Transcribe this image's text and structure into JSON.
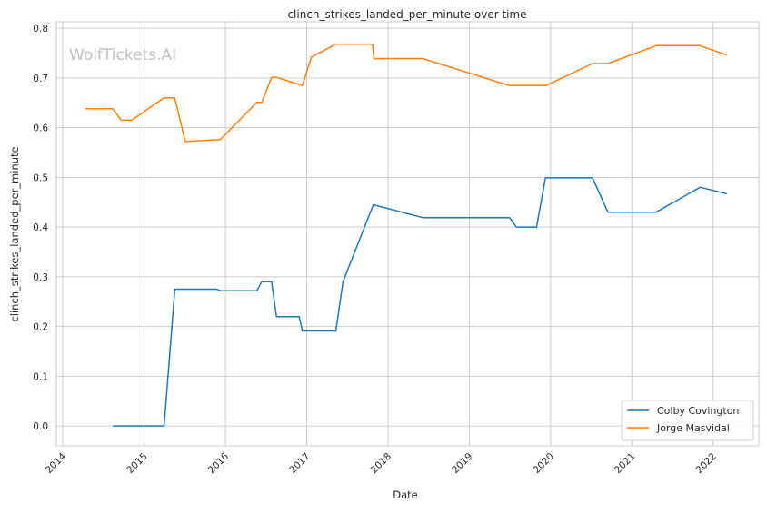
{
  "chart_data": {
    "type": "line",
    "title": "clinch_strikes_landed_per_minute over time",
    "xlabel": "Date",
    "ylabel": "clinch_strikes_landed_per_minute",
    "watermark": "WolfTickets.AI",
    "xlim": [
      "2013-12-03",
      "2022-07-25"
    ],
    "ylim": [
      -0.04,
      0.813
    ],
    "x_ticks": [
      "2014",
      "2015",
      "2016",
      "2017",
      "2018",
      "2019",
      "2020",
      "2021",
      "2022"
    ],
    "y_ticks": [
      "0.0",
      "0.1",
      "0.2",
      "0.3",
      "0.4",
      "0.5",
      "0.6",
      "0.7",
      "0.8"
    ],
    "grid": true,
    "legend_position": "lower-right",
    "series": [
      {
        "name": "Colby Covington",
        "color": "#1f77b4",
        "x": [
          "2014-08-14",
          "2015-04-01",
          "2015-05-19",
          "2015-11-24",
          "2015-12-09",
          "2016-05-22",
          "2016-06-13",
          "2016-07-27",
          "2016-08-18",
          "2016-11-28",
          "2016-12-13",
          "2017-05-12",
          "2017-06-13",
          "2017-10-27",
          "2018-06-06",
          "2019-07-01",
          "2019-07-31",
          "2019-10-30",
          "2019-12-09",
          "2020-07-08",
          "2020-09-15",
          "2021-04-20",
          "2021-11-03",
          "2022-03-03"
        ],
        "y": [
          0.0,
          0.0,
          0.275,
          0.275,
          0.272,
          0.272,
          0.29,
          0.29,
          0.22,
          0.22,
          0.191,
          0.191,
          0.29,
          0.445,
          0.419,
          0.419,
          0.4,
          0.4,
          0.499,
          0.499,
          0.43,
          0.43,
          0.48,
          0.467
        ]
      },
      {
        "name": "Jorge Masvidal",
        "color": "#ff7f0e",
        "x": [
          "2014-04-12",
          "2014-08-14",
          "2014-09-20",
          "2014-11-06",
          "2015-04-01",
          "2015-05-19",
          "2015-07-05",
          "2015-12-09",
          "2016-05-22",
          "2016-06-13",
          "2016-07-27",
          "2016-08-18",
          "2016-12-13",
          "2017-01-22",
          "2017-05-12",
          "2017-10-23",
          "2017-10-30",
          "2018-06-06",
          "2019-06-28",
          "2019-12-13",
          "2020-07-08",
          "2020-09-15",
          "2021-04-20",
          "2021-11-03",
          "2022-03-03"
        ],
        "y": [
          0.638,
          0.638,
          0.615,
          0.615,
          0.66,
          0.66,
          0.572,
          0.576,
          0.651,
          0.651,
          0.701,
          0.701,
          0.685,
          0.742,
          0.768,
          0.768,
          0.739,
          0.739,
          0.685,
          0.685,
          0.729,
          0.729,
          0.765,
          0.765,
          0.746
        ]
      }
    ]
  }
}
